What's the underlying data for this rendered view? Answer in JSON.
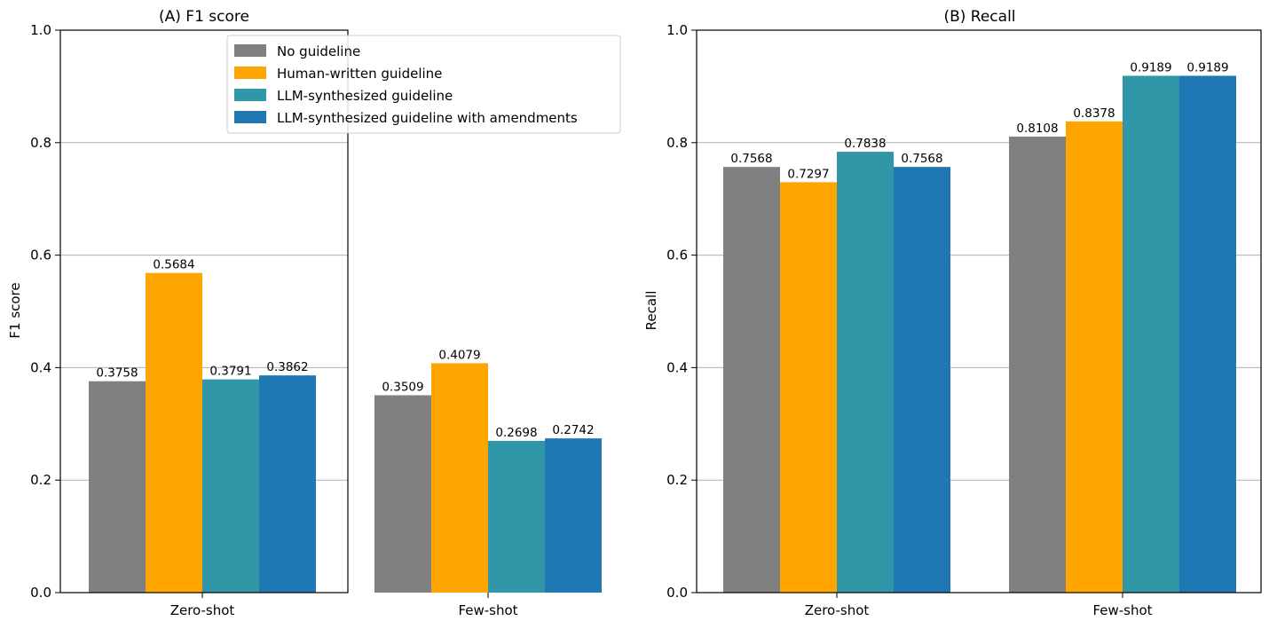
{
  "chart_data": [
    {
      "type": "bar",
      "title": "(A) F1 score",
      "xlabel": "",
      "ylabel": "F1 score",
      "ylim": [
        0,
        1.0
      ],
      "yticks": [
        "0.0",
        "0.2",
        "0.4",
        "0.6",
        "0.8",
        "1.0"
      ],
      "grid": "y",
      "legend": "top-right",
      "categories": [
        "Zero-shot",
        "Few-shot"
      ],
      "series": [
        {
          "name": "No guideline",
          "color": "#808080",
          "values": [
            0.3758,
            0.3509
          ],
          "labels": [
            "0.3758",
            "0.3509"
          ]
        },
        {
          "name": "Human-written guideline",
          "color": "#FFA500",
          "values": [
            0.5684,
            0.4079
          ],
          "labels": [
            "0.5684",
            "0.4079"
          ]
        },
        {
          "name": "LLM-synthesized guideline",
          "color": "#3196A7",
          "values": [
            0.3791,
            0.2698
          ],
          "labels": [
            "0.3791",
            "0.2698"
          ]
        },
        {
          "name": "LLM-synthesized guideline with amendments",
          "color": "#1F77B4",
          "values": [
            0.3862,
            0.2742
          ],
          "labels": [
            "0.3862",
            "0.2742"
          ]
        }
      ]
    },
    {
      "type": "bar",
      "title": "(B) Recall",
      "xlabel": "",
      "ylabel": "Recall",
      "ylim": [
        0,
        1.0
      ],
      "yticks": [
        "0.0",
        "0.2",
        "0.4",
        "0.6",
        "0.8",
        "1.0"
      ],
      "grid": "y",
      "legend": "none",
      "categories": [
        "Zero-shot",
        "Few-shot"
      ],
      "series": [
        {
          "color": "#808080",
          "values": [
            0.7568,
            0.8108
          ],
          "labels": [
            "0.7568",
            "0.8108"
          ]
        },
        {
          "color": "#FFA500",
          "values": [
            0.7297,
            0.8378
          ],
          "labels": [
            "0.7297",
            "0.8378"
          ]
        },
        {
          "color": "#3196A7",
          "values": [
            0.7838,
            0.9189
          ],
          "labels": [
            "0.7838",
            "0.9189"
          ]
        },
        {
          "color": "#1F77B4",
          "values": [
            0.7568,
            0.9189
          ],
          "labels": [
            "0.7568",
            "0.9189"
          ]
        }
      ]
    }
  ]
}
